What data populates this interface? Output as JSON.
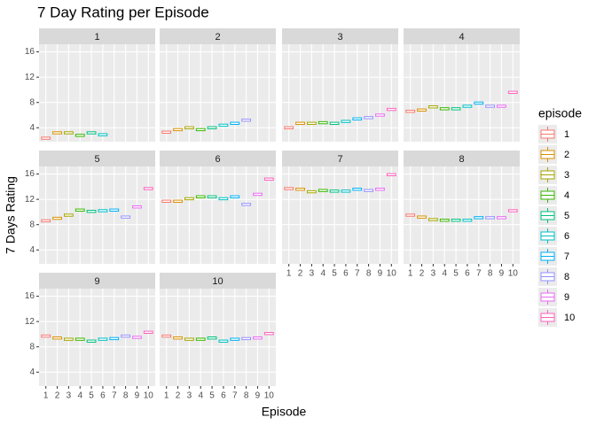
{
  "chart_data": {
    "type": "box",
    "title": "7 Day Rating per Episode",
    "x_label": "Episode",
    "y_label": "7 Days Rating",
    "legend_title": "episode",
    "categories": [
      "1",
      "2",
      "3",
      "4",
      "5",
      "6",
      "7",
      "8",
      "9",
      "10"
    ],
    "ylim": [
      1.8,
      17.2
    ],
    "yticks": [
      4,
      8,
      12,
      16
    ],
    "grid": true,
    "series": [
      {
        "name": "1",
        "color": "#F8766D"
      },
      {
        "name": "2",
        "color": "#D89000"
      },
      {
        "name": "3",
        "color": "#A3A500"
      },
      {
        "name": "4",
        "color": "#39B600"
      },
      {
        "name": "5",
        "color": "#00BF7D"
      },
      {
        "name": "6",
        "color": "#00BFC4"
      },
      {
        "name": "7",
        "color": "#00B0F6"
      },
      {
        "name": "8",
        "color": "#9590FF"
      },
      {
        "name": "9",
        "color": "#E76BF3"
      },
      {
        "name": "10",
        "color": "#FF62BC"
      }
    ],
    "facets": [
      {
        "label": "1",
        "values": [
          2.35,
          3.2,
          3.2,
          2.8,
          3.2,
          2.9
        ]
      },
      {
        "label": "2",
        "values": [
          3.3,
          3.7,
          4.0,
          3.7,
          4.0,
          4.4,
          4.7,
          5.2
        ]
      },
      {
        "label": "3",
        "values": [
          4.0,
          4.7,
          4.7,
          4.8,
          4.7,
          5.0,
          5.4,
          5.6,
          6.0,
          6.9
        ]
      },
      {
        "label": "4",
        "values": [
          6.6,
          6.8,
          7.3,
          7.0,
          7.0,
          7.4,
          7.9,
          7.4,
          7.4,
          9.6
        ]
      },
      {
        "label": "5",
        "values": [
          8.6,
          9.0,
          9.5,
          10.3,
          10.1,
          10.2,
          10.3,
          9.2,
          10.8,
          13.7
        ]
      },
      {
        "label": "6",
        "values": [
          11.7,
          11.7,
          12.1,
          12.4,
          12.4,
          12.1,
          12.4,
          11.2,
          12.8,
          15.2
        ]
      },
      {
        "label": "7",
        "values": [
          13.7,
          13.6,
          13.2,
          13.4,
          13.3,
          13.3,
          13.6,
          13.4,
          13.6,
          15.9
        ]
      },
      {
        "label": "8",
        "values": [
          9.5,
          9.2,
          8.8,
          8.7,
          8.7,
          8.7,
          9.1,
          9.1,
          9.1,
          10.2
        ]
      },
      {
        "label": "9",
        "values": [
          9.7,
          9.4,
          9.2,
          9.2,
          8.9,
          9.2,
          9.3,
          9.7,
          9.5,
          10.3
        ]
      },
      {
        "label": "10",
        "values": [
          9.7,
          9.4,
          9.2,
          9.2,
          9.4,
          8.9,
          9.2,
          9.3,
          9.4,
          10.1
        ]
      }
    ]
  }
}
